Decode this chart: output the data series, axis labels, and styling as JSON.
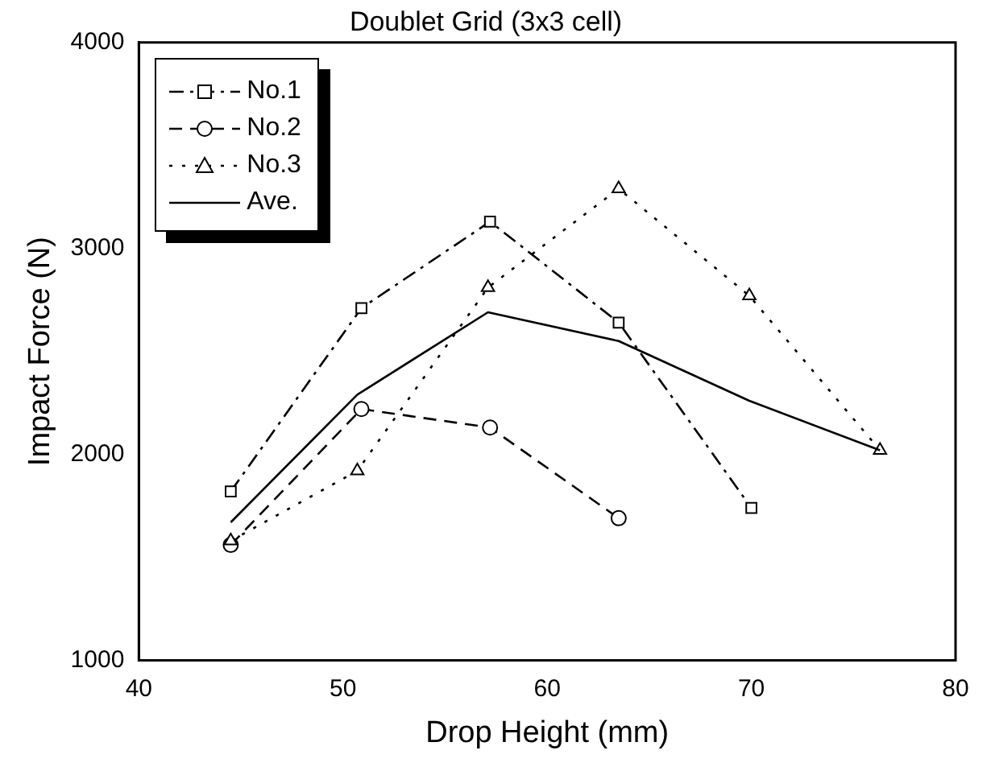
{
  "chart_data": {
    "type": "line",
    "title": "Doublet Grid (3x3 cell)",
    "xlabel": "Drop Height (mm)",
    "ylabel": "Impact Force (N)",
    "xlim": [
      40,
      80
    ],
    "xticks": [
      40,
      50,
      60,
      70,
      80
    ],
    "ylim": [
      1000,
      4000
    ],
    "yticks": [
      1000,
      2000,
      3000,
      4000
    ],
    "grid": false,
    "legend": "top left",
    "series": [
      {
        "name": "No.1",
        "color": "#000000",
        "marker": "square",
        "line_style": "dashdot",
        "x": [
          44.5,
          50.9,
          57.2,
          63.5,
          70.0
        ],
        "values": [
          1820,
          2710,
          3130,
          2640,
          1740
        ]
      },
      {
        "name": "No.2",
        "color": "#000000",
        "marker": "circle",
        "line_style": "dashed",
        "x": [
          44.5,
          50.9,
          57.2,
          63.5
        ],
        "values": [
          1560,
          2220,
          2130,
          1690
        ]
      },
      {
        "name": "No.3",
        "color": "#000000",
        "marker": "triangle",
        "line_style": "dotted",
        "x": [
          44.5,
          50.7,
          57.1,
          63.5,
          69.9,
          76.3
        ],
        "values": [
          1580,
          1920,
          2810,
          3290,
          2770,
          2020
        ]
      },
      {
        "name": "Ave.",
        "color": "#000000",
        "marker": "none",
        "line_style": "solid",
        "x": [
          44.5,
          50.7,
          57.1,
          63.5,
          69.9,
          76.3
        ],
        "values": [
          1670,
          2290,
          2690,
          2550,
          2260,
          2020
        ]
      }
    ]
  }
}
